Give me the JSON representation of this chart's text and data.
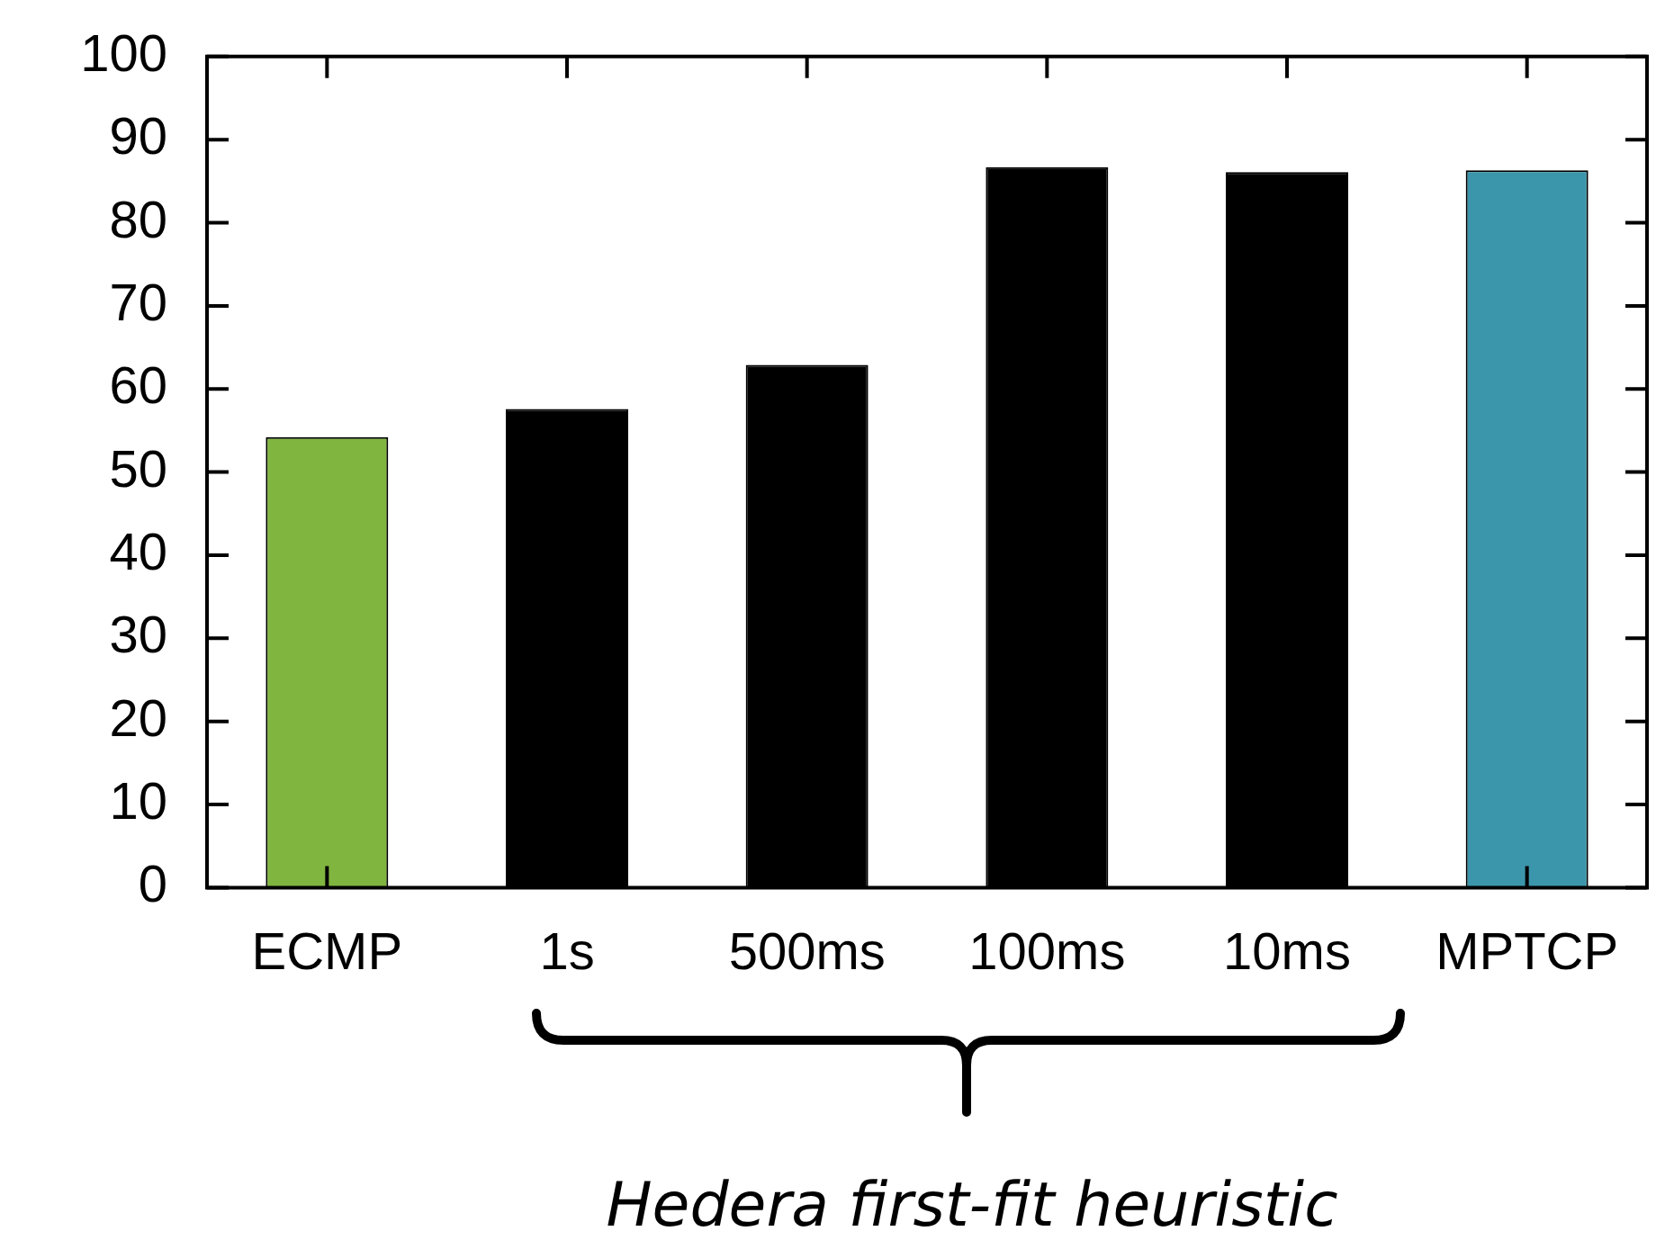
{
  "chart_data": {
    "type": "bar",
    "categories": [
      "ECMP",
      "1s",
      "500ms",
      "100ms",
      "10ms",
      "MPTCP"
    ],
    "values": [
      54.2,
      57.6,
      62.9,
      86.7,
      86.1,
      86.3
    ],
    "colors": [
      "#80b53f",
      "#000000",
      "#000000",
      "#000000",
      "#000000",
      "#3c96ab"
    ],
    "ylim": [
      0,
      100
    ],
    "yticks": [
      0,
      10,
      20,
      30,
      40,
      50,
      60,
      70,
      80,
      90,
      100
    ],
    "annotations": [
      "Hedera first-fit heuristic"
    ],
    "grid": false,
    "legend": false
  }
}
